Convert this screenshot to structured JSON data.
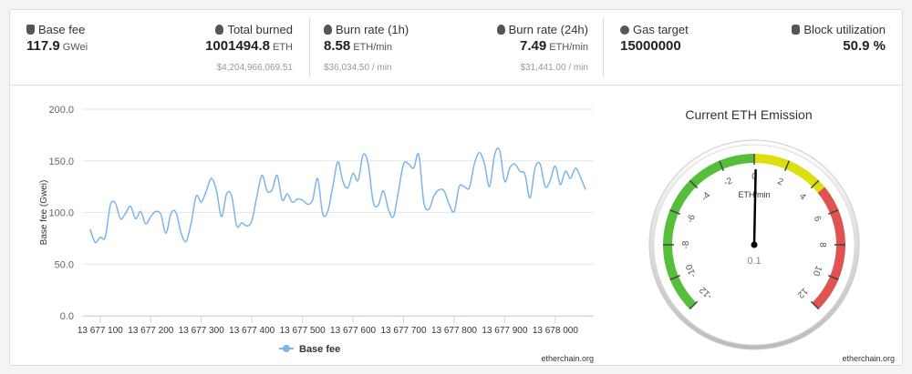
{
  "stats": [
    {
      "label": "Base fee",
      "value": "117.9",
      "unit": "GWei"
    },
    {
      "label": "Total burned",
      "value": "1001494.8",
      "unit": "ETH",
      "sub": "$4,204,966,069.51"
    },
    {
      "label": "Burn rate (1h)",
      "value": "8.58",
      "unit": "ETH/min",
      "sub": "$36,034.50 / min"
    },
    {
      "label": "Burn rate (24h)",
      "value": "7.49",
      "unit": "ETH/min",
      "sub": "$31,441.00 / min"
    },
    {
      "label": "Gas target",
      "value": "15000000"
    },
    {
      "label": "Block utilization",
      "value": "50.9 %"
    }
  ],
  "chart_data": [
    {
      "type": "line",
      "y_label": "Base fee (Gwei)",
      "credit": "etherchain.org",
      "grid": true,
      "legend": "bottom",
      "x": [
        13677080,
        13677090,
        13677100,
        13677110,
        13677120,
        13677130,
        13677140,
        13677150,
        13677160,
        13677170,
        13677180,
        13677190,
        13677200,
        13677210,
        13677220,
        13677230,
        13677240,
        13677250,
        13677260,
        13677270,
        13677280,
        13677290,
        13677300,
        13677310,
        13677320,
        13677330,
        13677340,
        13677350,
        13677360,
        13677370,
        13677380,
        13677390,
        13677400,
        13677410,
        13677420,
        13677430,
        13677440,
        13677450,
        13677460,
        13677470,
        13677480,
        13677490,
        13677500,
        13677510,
        13677520,
        13677530,
        13677540,
        13677550,
        13677560,
        13677570,
        13677580,
        13677590,
        13677600,
        13677610,
        13677620,
        13677630,
        13677640,
        13677650,
        13677660,
        13677670,
        13677680,
        13677690,
        13677700,
        13677710,
        13677720,
        13677730,
        13677740,
        13677750,
        13677760,
        13677770,
        13677780,
        13677790,
        13677800,
        13677810,
        13677820,
        13677830,
        13677840,
        13677850,
        13677860,
        13677870,
        13677880,
        13677890,
        13677900,
        13677910,
        13677920,
        13677930,
        13677940,
        13677950,
        13677960,
        13677970,
        13677980,
        13677990,
        13678000,
        13678010,
        13678020,
        13678030,
        13678040,
        13678050,
        13678060
      ],
      "series": [
        {
          "name": "Base fee",
          "color": "#7cb5ec",
          "values": [
            84,
            71,
            76,
            76,
            107,
            109,
            94,
            99,
            106,
            94,
            101,
            89,
            96,
            101,
            98,
            80,
            99,
            100,
            80,
            72,
            90,
            116,
            110,
            121,
            133,
            121,
            96,
            118,
            116,
            87,
            90,
            87,
            92,
            116,
            136,
            121,
            122,
            136,
            112,
            118,
            110,
            113,
            112,
            108,
            112,
            133,
            99,
            101,
            125,
            149,
            130,
            124,
            138,
            131,
            156,
            147,
            110,
            107,
            121,
            103,
            96,
            121,
            147,
            147,
            143,
            156,
            110,
            103,
            116,
            122,
            121,
            108,
            101,
            125,
            125,
            124,
            147,
            158,
            147,
            125,
            156,
            160,
            130,
            143,
            147,
            140,
            137,
            114,
            143,
            147,
            125,
            131,
            145,
            127,
            140,
            133,
            143,
            134,
            122
          ]
        }
      ],
      "xlim": [
        13677066,
        13678076
      ],
      "xticks": [
        {
          "value": 13677100,
          "label": "13 677 100"
        },
        {
          "value": 13677200,
          "label": "13 677 200"
        },
        {
          "value": 13677300,
          "label": "13 677 300"
        },
        {
          "value": 13677400,
          "label": "13 677 400"
        },
        {
          "value": 13677500,
          "label": "13 677 500"
        },
        {
          "value": 13677600,
          "label": "13 677 600"
        },
        {
          "value": 13677700,
          "label": "13 677 700"
        },
        {
          "value": 13677800,
          "label": "13 677 800"
        },
        {
          "value": 13677900,
          "label": "13 677 900"
        },
        {
          "value": 13678000,
          "label": "13 678 000"
        }
      ],
      "ylim": [
        0,
        200
      ],
      "yticks": [
        {
          "value": 0,
          "label": "0.0"
        },
        {
          "value": 50,
          "label": "50.0"
        },
        {
          "value": 100,
          "label": "100.0"
        },
        {
          "value": 150,
          "label": "150.0"
        },
        {
          "value": 200,
          "label": "200.0"
        }
      ]
    },
    {
      "type": "gauge",
      "title": "Current ETH Emission",
      "unit": "ETH/min",
      "value": 0.1,
      "credit": "etherchain.org",
      "lim": [
        -12,
        12
      ],
      "ticks": [
        -12,
        -10,
        -8,
        -6,
        -4,
        -2,
        0,
        2,
        4,
        6,
        8,
        10,
        12
      ],
      "bands": [
        {
          "from": -12,
          "to": 0,
          "color": "#55bf3b"
        },
        {
          "from": 0,
          "to": 4.5,
          "color": "#dddf0d"
        },
        {
          "from": 4.5,
          "to": 12,
          "color": "#df5353"
        }
      ]
    }
  ]
}
